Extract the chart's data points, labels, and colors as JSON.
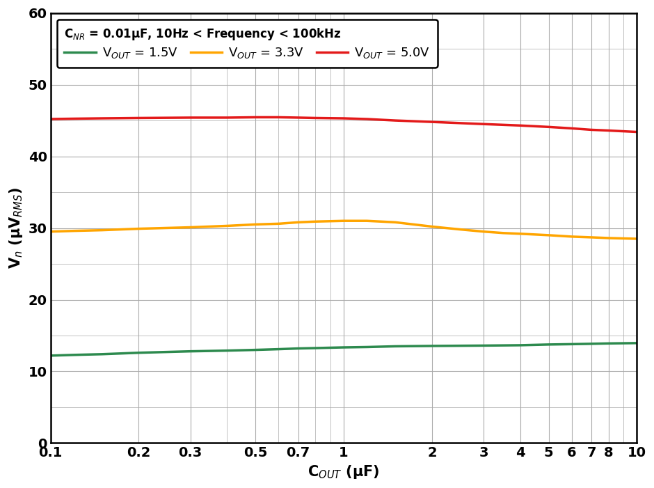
{
  "xlabel": "C$_{OUT}$ (μF)",
  "ylabel": "V$_n$ (μV$_{RMS}$)",
  "xlim": [
    0.1,
    10
  ],
  "ylim": [
    0,
    60
  ],
  "yticks": [
    0,
    10,
    20,
    30,
    40,
    50,
    60
  ],
  "xtick_labels": [
    "0.1",
    "0.2",
    "0.3",
    "0.5",
    "0.7",
    "1",
    "2",
    "3",
    "4",
    "5",
    "6",
    "7",
    "8",
    "10"
  ],
  "xtick_vals": [
    0.1,
    0.2,
    0.3,
    0.5,
    0.7,
    1.0,
    2.0,
    3.0,
    4.0,
    5.0,
    6.0,
    7.0,
    8.0,
    10.0
  ],
  "legend_title": "C$_{NR}$ = 0.01μF, 10Hz < Frequency < 100kHz",
  "curve_1_5V": {
    "x": [
      0.1,
      0.12,
      0.15,
      0.2,
      0.3,
      0.4,
      0.5,
      0.6,
      0.7,
      0.8,
      1.0,
      1.2,
      1.5,
      2.0,
      3.0,
      4.0,
      5.0,
      6.0,
      7.0,
      8.0,
      10.0
    ],
    "y": [
      12.2,
      12.3,
      12.4,
      12.6,
      12.8,
      12.9,
      13.0,
      13.1,
      13.2,
      13.25,
      13.35,
      13.4,
      13.5,
      13.55,
      13.6,
      13.65,
      13.75,
      13.8,
      13.85,
      13.9,
      13.95
    ],
    "color": "#2d8a4e",
    "label": "V$_{OUT}$ = 1.5V",
    "linewidth": 2.5
  },
  "curve_3_3V": {
    "x": [
      0.1,
      0.12,
      0.15,
      0.2,
      0.3,
      0.4,
      0.5,
      0.6,
      0.7,
      0.8,
      1.0,
      1.2,
      1.5,
      2.0,
      2.5,
      3.0,
      3.5,
      4.0,
      5.0,
      6.0,
      7.0,
      8.0,
      10.0
    ],
    "y": [
      29.5,
      29.6,
      29.7,
      29.9,
      30.1,
      30.3,
      30.5,
      30.6,
      30.8,
      30.9,
      31.0,
      31.0,
      30.8,
      30.2,
      29.8,
      29.5,
      29.3,
      29.2,
      29.0,
      28.8,
      28.7,
      28.6,
      28.5
    ],
    "color": "#ffa500",
    "label": "V$_{OUT}$ = 3.3V",
    "linewidth": 2.5
  },
  "curve_5_0V": {
    "x": [
      0.1,
      0.12,
      0.15,
      0.2,
      0.3,
      0.4,
      0.5,
      0.6,
      0.7,
      0.8,
      1.0,
      1.2,
      1.5,
      2.0,
      3.0,
      4.0,
      5.0,
      6.0,
      7.0,
      8.0,
      10.0
    ],
    "y": [
      45.2,
      45.25,
      45.3,
      45.35,
      45.4,
      45.4,
      45.45,
      45.45,
      45.4,
      45.35,
      45.3,
      45.2,
      45.0,
      44.8,
      44.5,
      44.3,
      44.1,
      43.9,
      43.7,
      43.6,
      43.4
    ],
    "color": "#e31a1a",
    "label": "V$_{OUT}$ = 5.0V",
    "linewidth": 2.5
  },
  "background_color": "#ffffff",
  "grid_color": "#aaaaaa",
  "figsize": [
    9.4,
    7.01
  ],
  "dpi": 100
}
